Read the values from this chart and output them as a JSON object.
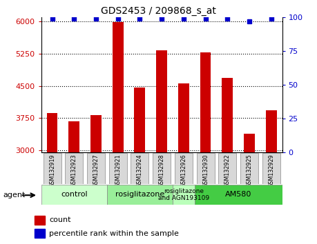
{
  "title": "GDS2453 / 209868_s_at",
  "samples": [
    "GSM132919",
    "GSM132923",
    "GSM132927",
    "GSM132921",
    "GSM132924",
    "GSM132928",
    "GSM132926",
    "GSM132930",
    "GSM132922",
    "GSM132925",
    "GSM132929"
  ],
  "counts": [
    3870,
    3670,
    3820,
    5990,
    4460,
    5320,
    4550,
    5280,
    4680,
    3390,
    3940
  ],
  "percentiles": [
    99,
    99,
    99,
    99,
    99,
    99,
    99,
    99,
    99,
    97,
    99
  ],
  "ylim_left": [
    2950,
    6100
  ],
  "ylim_right": [
    0,
    100
  ],
  "yticks_left": [
    3000,
    3750,
    4500,
    5250,
    6000
  ],
  "yticks_right": [
    0,
    25,
    50,
    75,
    100
  ],
  "bar_color": "#cc0000",
  "dot_color": "#0000cc",
  "groups": [
    {
      "label": "control",
      "start": 0,
      "end": 3,
      "color": "#ccffcc"
    },
    {
      "label": "rosiglitazone",
      "start": 3,
      "end": 6,
      "color": "#99ee99"
    },
    {
      "label": "rosiglitazone\nand AGN193109",
      "start": 6,
      "end": 7,
      "color": "#bbffbb"
    },
    {
      "label": "AM580",
      "start": 7,
      "end": 11,
      "color": "#44cc44"
    }
  ],
  "agent_label": "agent",
  "legend_count_label": "count",
  "legend_percentile_label": "percentile rank within the sample",
  "tick_color_left": "#cc0000",
  "tick_color_right": "#0000cc",
  "bar_width": 0.5
}
